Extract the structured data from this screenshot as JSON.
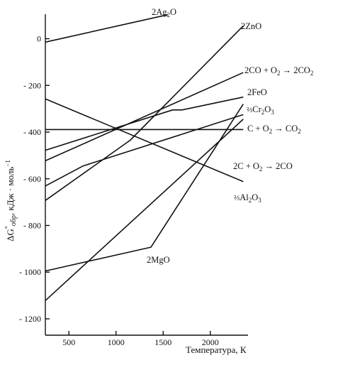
{
  "chart_data": {
    "type": "line",
    "title": "",
    "xlabel": "Температура, К",
    "ylabel": "ΔG°обр, кДж · моль⁻¹",
    "xlim": [
      250,
      2400
    ],
    "ylim": [
      -1270,
      105
    ],
    "grid": false,
    "legend": "none",
    "x_ticks": [
      500,
      1000,
      1500,
      2000
    ],
    "y_ticks": [
      0,
      -200,
      -400,
      -600,
      -800,
      -1000,
      -1200
    ],
    "y_tick_labels": [
      "0",
      "- 200",
      "- 400",
      "- 600",
      "- 800",
      "- 1000",
      "- 1200"
    ],
    "series": [
      {
        "name": "2Ag₂O",
        "points": [
          [
            250,
            -15
          ],
          [
            300,
            -10
          ],
          [
            1550,
            103
          ]
        ]
      },
      {
        "name": "2ZnO",
        "points": [
          [
            250,
            -693
          ],
          [
            1150,
            -435
          ],
          [
            2350,
            55
          ]
        ]
      },
      {
        "name": "2CO + O₂ → 2CO₂",
        "points": [
          [
            250,
            -523
          ],
          [
            2350,
            -145
          ]
        ]
      },
      {
        "name": "2FeO",
        "points": [
          [
            250,
            -478
          ],
          [
            1600,
            -305
          ],
          [
            1700,
            -305
          ],
          [
            2350,
            -250
          ]
        ]
      },
      {
        "name": "⅔Cr₂O₃",
        "points": [
          [
            250,
            -631
          ],
          [
            650,
            -545
          ],
          [
            2350,
            -325
          ]
        ]
      },
      {
        "name": "C + O₂ → CO₂",
        "points": [
          [
            250,
            -389
          ],
          [
            2350,
            -389
          ]
        ]
      },
      {
        "name": "2C + O₂ → 2CO",
        "points": [
          [
            250,
            -258
          ],
          [
            2350,
            -612
          ]
        ]
      },
      {
        "name": "⅔Al₂O₃",
        "points": [
          [
            250,
            -1122
          ],
          [
            2350,
            -345
          ]
        ]
      },
      {
        "name": "2MgO",
        "points": [
          [
            250,
            -995
          ],
          [
            1370,
            -893
          ],
          [
            2350,
            -280
          ]
        ]
      }
    ]
  },
  "labels": {
    "ag2o": {
      "base": "2Ag",
      "sub": "2",
      "tail": "O"
    },
    "zno": {
      "text": "2ZnO"
    },
    "co2_from_co": {
      "a": "2CO + O",
      "sub": "2",
      "b": " → 2CO",
      "sub2": "2"
    },
    "feo": {
      "text": "2FeO"
    },
    "cr2o3": {
      "frac": "⅔",
      "a": "Cr",
      "sub": "2",
      "b": "O",
      "sub2": "3"
    },
    "co2": {
      "a": "C + O",
      "sub": "2",
      "b": " → CO",
      "sub2": "2"
    },
    "co": {
      "a": "2C + O",
      "sub": "2",
      "b": " → 2CO"
    },
    "al2o3": {
      "frac": "⅔",
      "a": "Al",
      "sub": "2",
      "b": "O",
      "sub2": "3"
    },
    "mgo": {
      "text": "2MgO"
    }
  },
  "axis": {
    "ylabel": {
      "delta": "ΔG",
      "deg": "°",
      "sub": "обр",
      "rest": ", кДж · моль",
      "sup": "−1"
    }
  }
}
